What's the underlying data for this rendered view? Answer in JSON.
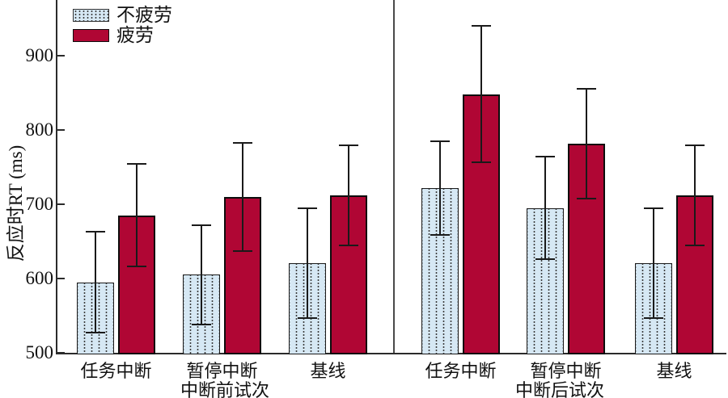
{
  "chart_data": {
    "type": "bar",
    "title": "",
    "ylabel": "反应时RT (ms)",
    "xlabel": "",
    "ylim": [
      500,
      975
    ],
    "yticks": [
      500,
      600,
      700,
      800,
      900
    ],
    "grid": false,
    "legend_position": "top-left-inside",
    "legend": [
      {
        "label": "不疲劳",
        "fill": "#d6e8f4",
        "pattern": "dotted"
      },
      {
        "label": "疲劳",
        "fill": "#b00634",
        "pattern": "solid"
      }
    ],
    "panels": [
      {
        "group_label": "中断前试次",
        "categories": [
          "任务中断",
          "暂停中断",
          "基线"
        ]
      },
      {
        "group_label": "中断后试次",
        "categories": [
          "任务中断",
          "暂停中断",
          "基线"
        ]
      }
    ],
    "categories": [
      "任务中断",
      "暂停中断",
      "基线",
      "任务中断",
      "暂停中断",
      "基线"
    ],
    "series": [
      {
        "name": "不疲劳",
        "values": [
          595,
          605,
          621,
          722,
          695,
          621
        ],
        "errors": [
          69,
          68,
          75,
          64,
          70,
          75
        ]
      },
      {
        "name": "疲劳",
        "values": [
          685,
          710,
          712,
          848,
          782,
          712
        ],
        "errors": [
          70,
          74,
          68,
          93,
          75,
          68
        ]
      }
    ]
  },
  "colors": {
    "axis": "#2b2b2b",
    "divider": "#4a4a4a",
    "bar_border": "#111111",
    "error_bar": "#1a1a1a",
    "nofatigue_fill": "#d6e8f4",
    "nofatigue_dots": "#3a3a3a",
    "fatigue_fill": "#b00634",
    "background": "#ffffff"
  }
}
